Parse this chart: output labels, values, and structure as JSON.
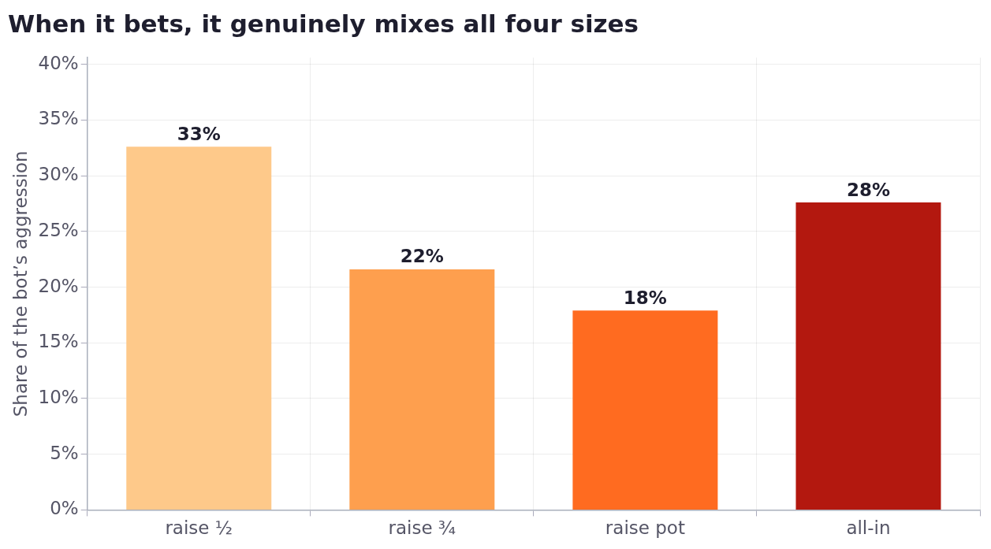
{
  "chart_data": {
    "type": "bar",
    "title": "When it bets, it genuinely mixes all four sizes",
    "ylabel": "Share of the bot’s aggression",
    "categories": [
      "raise ½",
      "raise ¾",
      "raise pot",
      "all-in"
    ],
    "values": [
      32.6,
      21.6,
      17.9,
      27.6
    ],
    "colors": [
      "#fec98a",
      "#fe9f4e",
      "#ff6b20",
      "#b3180f"
    ],
    "value_labels": [
      "33%",
      "22%",
      "18%",
      "28%"
    ],
    "ylim": [
      0,
      40.6
    ],
    "yticks": [
      {
        "value": 0,
        "label": "0%"
      },
      {
        "value": 5,
        "label": "5%"
      },
      {
        "value": 10,
        "label": "10%"
      },
      {
        "value": 15,
        "label": "15%"
      },
      {
        "value": 20,
        "label": "20%"
      },
      {
        "value": 25,
        "label": "25%"
      },
      {
        "value": 30,
        "label": "30%"
      },
      {
        "value": 35,
        "label": "35%"
      },
      {
        "value": 40,
        "label": "40%"
      }
    ],
    "grid": true,
    "legend": false
  }
}
